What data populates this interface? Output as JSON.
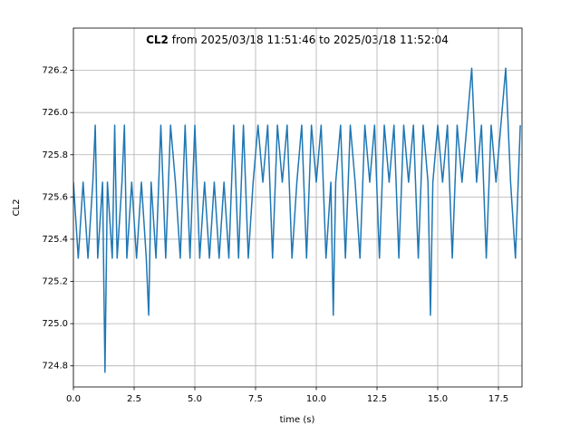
{
  "chart_data": {
    "type": "line",
    "title_bold": "CL2",
    "title": "from 2025/03/18 11:51:46 to 2025/03/18 11:52:04",
    "x_label": "time (s)",
    "y_label": "CL2",
    "color": "#1f77b4",
    "grid": true,
    "xlim": [
      0,
      18.47
    ],
    "ylim": [
      724.7,
      726.4
    ],
    "xticks": [
      {
        "value": 0,
        "label": "0.0"
      },
      2.5,
      {
        "value": 5,
        "label": "5.0"
      },
      7.5,
      {
        "value": 10,
        "label": "10.0"
      },
      12.5,
      {
        "value": 15,
        "label": "15.0"
      },
      17.5
    ],
    "yticks": [
      724.8,
      {
        "value": 725,
        "label": "725.0"
      },
      725.2,
      725.4,
      725.6,
      725.8,
      {
        "value": 726,
        "label": "726.0"
      },
      726.2
    ],
    "x": [
      0.0,
      0.2,
      0.4,
      0.6,
      0.8,
      0.9,
      1.0,
      1.2,
      1.3,
      1.4,
      1.6,
      1.7,
      1.8,
      2.0,
      2.1,
      2.2,
      2.4,
      2.6,
      2.8,
      3.0,
      3.1,
      3.2,
      3.4,
      3.6,
      3.8,
      4.0,
      4.2,
      4.4,
      4.6,
      4.8,
      5.0,
      5.2,
      5.4,
      5.6,
      5.8,
      6.0,
      6.2,
      6.4,
      6.6,
      6.8,
      7.0,
      7.2,
      7.4,
      7.6,
      7.8,
      8.0,
      8.2,
      8.4,
      8.6,
      8.8,
      9.0,
      9.2,
      9.4,
      9.6,
      9.8,
      10.0,
      10.2,
      10.4,
      10.6,
      10.7,
      10.8,
      11.0,
      11.2,
      11.4,
      11.6,
      11.8,
      12.0,
      12.2,
      12.4,
      12.6,
      12.8,
      13.0,
      13.2,
      13.4,
      13.6,
      13.8,
      14.0,
      14.2,
      14.4,
      14.6,
      14.7,
      14.8,
      15.0,
      15.2,
      15.4,
      15.6,
      15.8,
      16.0,
      16.2,
      16.4,
      16.6,
      16.8,
      17.0,
      17.2,
      17.4,
      17.6,
      17.8,
      18.0,
      18.2,
      18.4
    ],
    "values": [
      725.67,
      725.31,
      725.67,
      725.31,
      725.67,
      725.94,
      725.31,
      725.67,
      724.77,
      725.67,
      725.31,
      725.94,
      725.31,
      725.67,
      725.94,
      725.31,
      725.67,
      725.31,
      725.67,
      725.31,
      725.04,
      725.67,
      725.31,
      725.94,
      725.31,
      725.94,
      725.67,
      725.31,
      725.94,
      725.31,
      725.94,
      725.31,
      725.67,
      725.31,
      725.67,
      725.31,
      725.67,
      725.31,
      725.94,
      725.31,
      725.94,
      725.31,
      725.67,
      725.94,
      725.67,
      725.94,
      725.31,
      725.94,
      725.67,
      725.94,
      725.31,
      725.67,
      725.94,
      725.31,
      725.94,
      725.67,
      725.94,
      725.31,
      725.67,
      725.04,
      725.67,
      725.94,
      725.31,
      725.94,
      725.67,
      725.31,
      725.94,
      725.67,
      725.94,
      725.31,
      725.94,
      725.67,
      725.94,
      725.31,
      725.94,
      725.67,
      725.94,
      725.31,
      725.94,
      725.67,
      725.04,
      725.67,
      725.94,
      725.67,
      725.94,
      725.31,
      725.94,
      725.67,
      725.94,
      726.21,
      725.67,
      725.94,
      725.31,
      725.94,
      725.67,
      725.94,
      726.21,
      725.67,
      725.31,
      725.94
    ]
  }
}
